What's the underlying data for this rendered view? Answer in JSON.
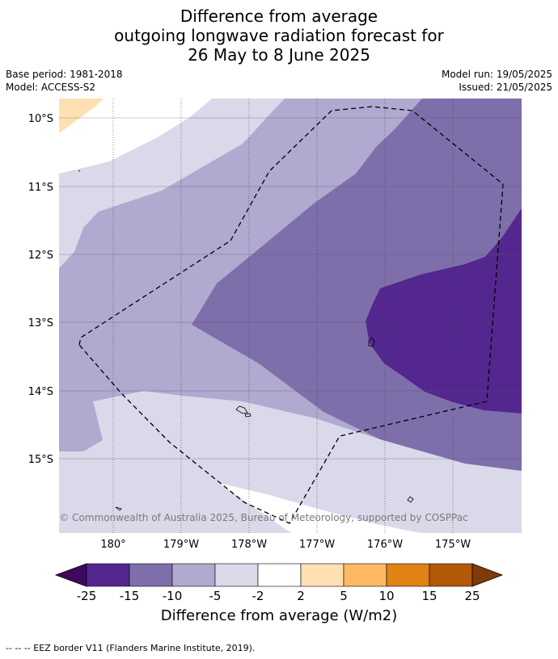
{
  "title": {
    "line1": "Difference from average",
    "line2": "outgoing longwave radiation forecast for",
    "line3": "26 May to 8 June 2025"
  },
  "meta": {
    "base_period": "Base period: 1981-2018",
    "model": "Model: ACCESS-S2",
    "model_run": "Model run: 19/05/2025",
    "issued": "Issued: 21/05/2025"
  },
  "map": {
    "copyright": "© Commonwealth of Australia 2025, Bureau of Meteorology, supported by COSPPac",
    "lat_labels": [
      "10°S",
      "11°S",
      "12°S",
      "13°S",
      "14°S",
      "15°S"
    ],
    "lon_labels": [
      "180°",
      "179°W",
      "178°W",
      "177°W",
      "176°W",
      "175°W"
    ]
  },
  "colorbar": {
    "title": "Difference from average (W/m2)",
    "tick_labels": [
      "-25",
      "-15",
      "-10",
      "-5",
      "-2",
      "2",
      "5",
      "10",
      "15",
      "25"
    ],
    "colors": [
      "#3f0a5e",
      "#54278f",
      "#7e6fab",
      "#b0a9d0",
      "#d9d9ea",
      "#ffffff",
      "#fee0b3",
      "#fdb863",
      "#e08214",
      "#b35806",
      "#7f3b08"
    ]
  },
  "footnote": "--  --  -- EEZ border V11 (Flanders Marine Institute, 2019)."
}
